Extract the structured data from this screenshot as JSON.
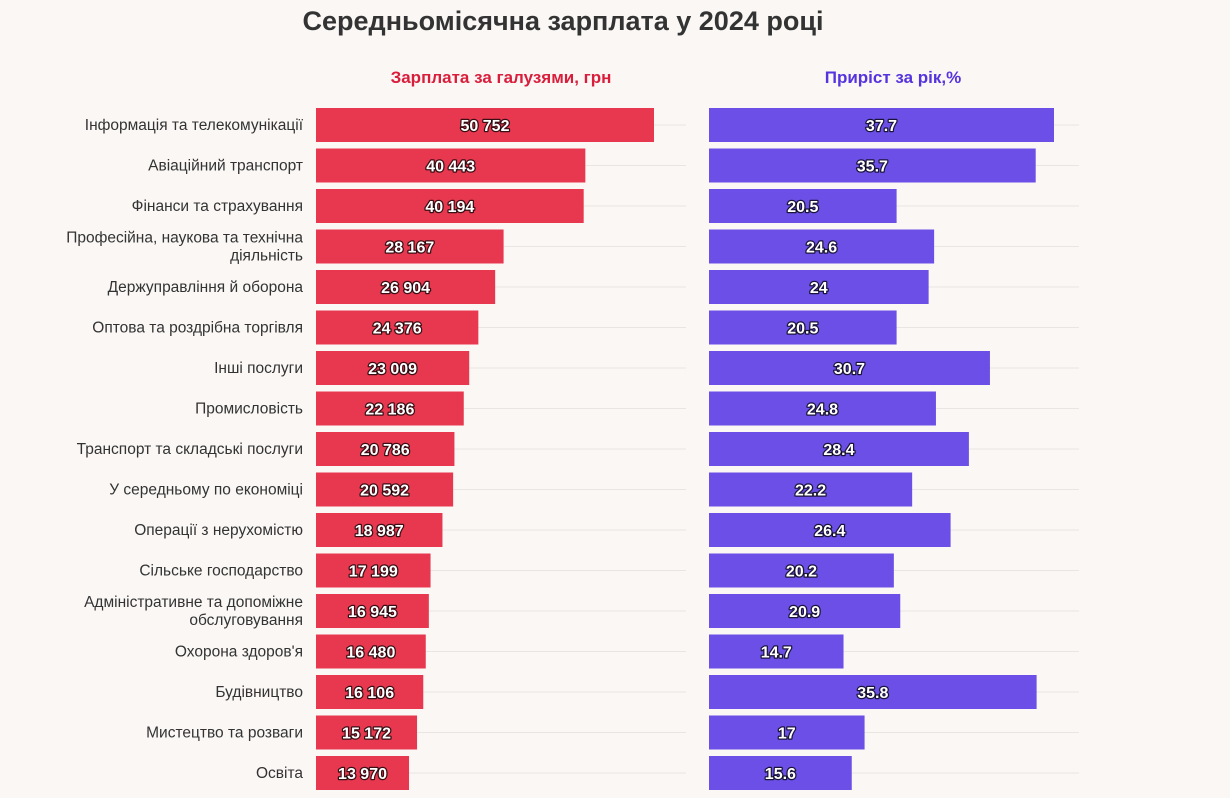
{
  "chart_data": {
    "type": "bar",
    "orientation": "horizontal",
    "title": "Середньомісячна зарплата у 2024 році",
    "categories": [
      "Інформація та телекомунікації",
      "Авіаційний транспорт",
      "Фінанси та страхування",
      "Професійна, наукова та технічна діяльність",
      "Держуправління й оборона",
      "Оптова та роздрібна торгівля",
      "Інші послуги",
      "Промисловість",
      "Транспорт та складські послуги",
      "У середньому по економіці",
      "Операції з нерухомістю",
      "Сільське господарство",
      "Адміністративне та допоміжне обслуговування",
      "Охорона здоров'я",
      "Будівництво",
      "Мистецтво та розваги",
      "Освіта"
    ],
    "category_lines": [
      [
        "Інформація та телекомунікації"
      ],
      [
        "Авіаційний транспорт"
      ],
      [
        "Фінанси та страхування"
      ],
      [
        "Професійна, наукова та технічна",
        "діяльність"
      ],
      [
        "Держуправління й оборона"
      ],
      [
        "Оптова та роздрібна торгівля"
      ],
      [
        "Інші послуги"
      ],
      [
        "Промисловість"
      ],
      [
        "Транспорт та складські послуги"
      ],
      [
        "У середньому по економіці"
      ],
      [
        "Операції з нерухомістю"
      ],
      [
        "Сільське господарство"
      ],
      [
        "Адміністративне та допоміжне",
        "обслуговування"
      ],
      [
        "Охорона здоров'я"
      ],
      [
        "Будівництво"
      ],
      [
        "Мистецтво та розваги"
      ],
      [
        "Освіта"
      ]
    ],
    "series": [
      {
        "name": "Зарплата за галузями, грн",
        "color": "#e8384f",
        "xlim": [
          0,
          55000
        ],
        "values": [
          50752,
          40443,
          40194,
          28167,
          26904,
          24376,
          23009,
          22186,
          20786,
          20592,
          18987,
          17199,
          16945,
          16480,
          16106,
          15172,
          13970
        ],
        "labels": [
          "50 752",
          "40 443",
          "40 194",
          "28 167",
          "26 904",
          "24 376",
          "23 009",
          "22 186",
          "20 786",
          "20 592",
          "18 987",
          "17 199",
          "16 945",
          "16 480",
          "16 106",
          "15 172",
          "13 970"
        ]
      },
      {
        "name": "Приріст за рік,%",
        "color": "#6b4fe6",
        "xlim": [
          0,
          40
        ],
        "values": [
          37.7,
          35.7,
          20.5,
          24.6,
          24,
          20.5,
          30.7,
          24.8,
          28.4,
          22.2,
          26.4,
          20.2,
          20.9,
          14.7,
          35.8,
          17,
          15.6
        ],
        "labels": [
          "37.7",
          "35.7",
          "20.5",
          "24.6",
          "24",
          "20.5",
          "30.7",
          "24.8",
          "28.4",
          "22.2",
          "26.4",
          "20.2",
          "20.9",
          "14.7",
          "35.8",
          "17",
          "15.6"
        ]
      }
    ],
    "grid": true,
    "legend": "none"
  }
}
